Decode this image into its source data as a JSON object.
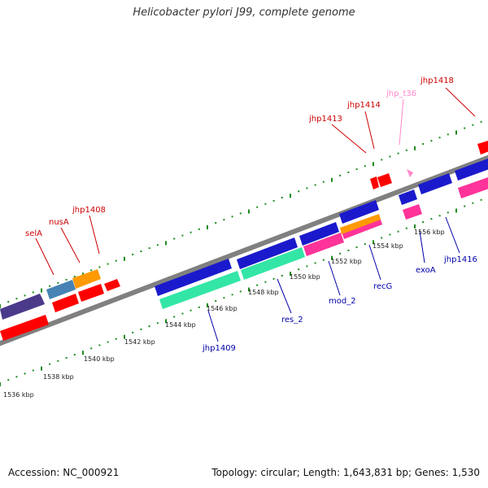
{
  "title": "Helicobacter pylori J99, complete genome",
  "footer": {
    "accession": "Accession: NC_000921",
    "summary": "Topology: circular; Length: 1,643,831 bp; Genes: 1,530"
  },
  "colors": {
    "backbone": "#808080",
    "tick": "#1e8c1e",
    "forward_label": "#cc0000",
    "reverse_label": "#0000aa",
    "trna_label": "#ff88cc"
  },
  "scale_labels": [
    "1536 kbp",
    "1538 kbp",
    "1540 kbp",
    "1542 kbp",
    "1544 kbp",
    "1546 kbp",
    "1548 kbp",
    "1550 kbp",
    "1552 kbp",
    "1554 kbp",
    "1556 kbp"
  ],
  "gene_labels": [
    {
      "text": "selA",
      "strand": "forward"
    },
    {
      "text": "nusA",
      "strand": "forward"
    },
    {
      "text": "jhp1408",
      "strand": "forward"
    },
    {
      "text": "jhp1413",
      "strand": "forward"
    },
    {
      "text": "jhp1414",
      "strand": "forward"
    },
    {
      "text": "jhp_t36",
      "strand": "trna"
    },
    {
      "text": "jhp1418",
      "strand": "forward"
    },
    {
      "text": "jhp1409",
      "strand": "reverse"
    },
    {
      "text": "res_2",
      "strand": "reverse"
    },
    {
      "text": "mod_2",
      "strand": "reverse"
    },
    {
      "text": "recG",
      "strand": "reverse"
    },
    {
      "text": "exoA",
      "strand": "reverse"
    },
    {
      "text": "jhp1416",
      "strand": "reverse"
    }
  ]
}
